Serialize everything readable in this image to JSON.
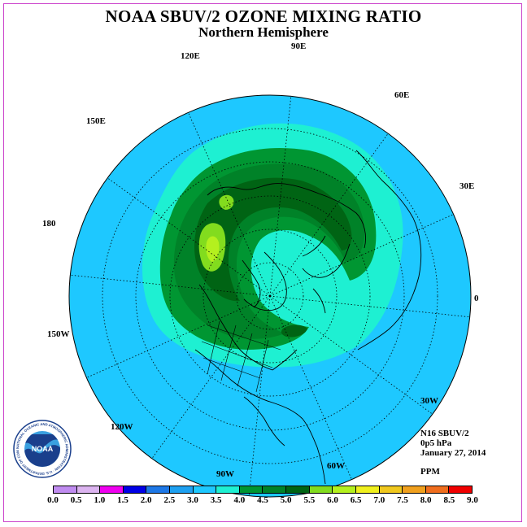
{
  "title": "NOAA SBUV/2 OZONE MIXING RATIO",
  "subtitle": "Northern Hemisphere",
  "longitude_labels": [
    "90E",
    "60E",
    "30E",
    "0",
    "30W",
    "60W",
    "90W",
    "120W",
    "150W",
    "180",
    "150E",
    "120E"
  ],
  "info": {
    "instrument": "N16 SBUV/2",
    "level": "0p5 hPa",
    "date": "January 27, 2014",
    "units": "PPM"
  },
  "logo": {
    "text": "NOAA",
    "ring_text": "NATIONAL OCEANIC AND ATMOSPHERIC ADMINISTRATION · U.S. DEPARTMENT OF COMMERCE"
  },
  "colorbar": {
    "labels": [
      "0.0",
      "0.5",
      "1.0",
      "1.5",
      "2.0",
      "2.5",
      "3.0",
      "3.5",
      "4.0",
      "4.5",
      "5.0",
      "5.5",
      "6.0",
      "6.5",
      "7.0",
      "7.5",
      "8.0",
      "8.5",
      "9.0"
    ],
    "colors": [
      "#c08cf0",
      "#dcb4f0",
      "#f000f0",
      "#0000e6",
      "#1e78e6",
      "#1ea0f0",
      "#1ec8ff",
      "#1ef0d2",
      "#009632",
      "#008228",
      "#006414",
      "#82dc1e",
      "#b4f01e",
      "#f0f01e",
      "#f0c81e",
      "#f0a01e",
      "#f06e1e",
      "#f00000",
      "#8c5a3c"
    ]
  },
  "map_colors": {
    "background": "#1ec8ff",
    "band_3_5": "#1ef0d2",
    "band_4_0": "#009632",
    "band_4_5": "#008228",
    "band_5_0": "#006414",
    "band_5_5": "#82dc1e",
    "band_6_0": "#b4f01e"
  }
}
